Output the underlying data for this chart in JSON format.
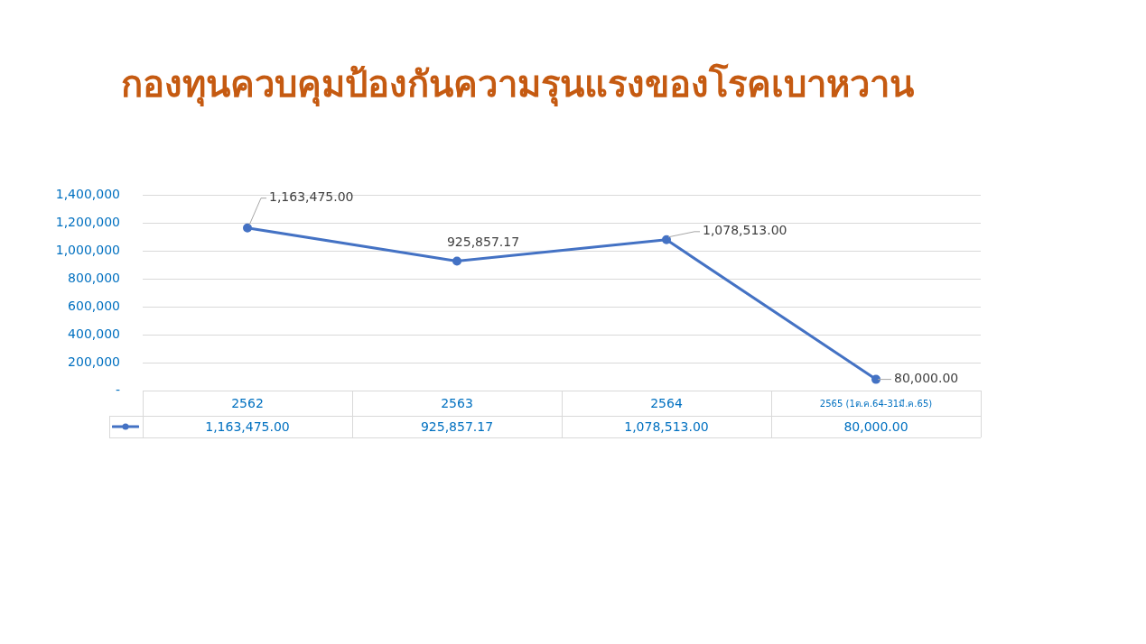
{
  "chart_data": {
    "type": "line",
    "title": "กองทุนควบคุมป้องกันความรุนแรงของโรคเบาหวาน",
    "categories": [
      "2562",
      "2563",
      "2564",
      "2565 (1ต.ค.64-31มี.ค.65)"
    ],
    "series": [
      {
        "color": "#4472c4",
        "values": [
          1163475,
          925857.17,
          1078513,
          80000
        ],
        "value_labels": [
          "1,163,475.00",
          "925,857.17",
          "1,078,513.00",
          "80,000.00"
        ]
      }
    ],
    "ylim": [
      0,
      1400000
    ],
    "yticks": [
      {
        "value": 0,
        "label": "-"
      },
      {
        "value": 200000,
        "label": "200,000"
      },
      {
        "value": 400000,
        "label": "400,000"
      },
      {
        "value": 600000,
        "label": "600,000"
      },
      {
        "value": 800000,
        "label": "800,000"
      },
      {
        "value": 1000000,
        "label": "1,000,000"
      },
      {
        "value": 1200000,
        "label": "1,200,000"
      },
      {
        "value": 1400000,
        "label": "1,400,000"
      }
    ],
    "grid": "y",
    "legend": false,
    "marker": "circle"
  }
}
